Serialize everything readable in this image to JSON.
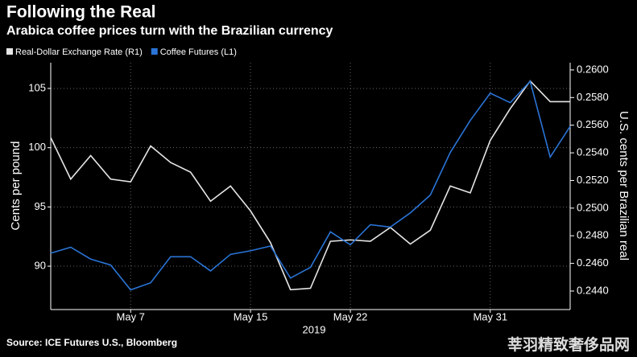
{
  "chart_data": {
    "type": "line",
    "title": "Following the Real",
    "subtitle": "Arabica coffee prices turn with the Brazilian currency",
    "ylabel": "Cents per pound",
    "y2label": "U.S. cents per Brazilian real",
    "xlabel": "2019",
    "source": "Source: ICE Futures U.S., Bloomberg",
    "watermark": "莘羽精致奢侈品网",
    "categories": [
      null,
      null,
      null,
      null,
      "May 7",
      null,
      null,
      null,
      null,
      null,
      "May 15",
      null,
      null,
      null,
      null,
      "May 22",
      null,
      null,
      null,
      null,
      null,
      null,
      "May 31",
      null,
      null,
      null,
      null
    ],
    "series": [
      {
        "name": "Real-Dollar Exchange Rate (R1)",
        "color": "#e6e6e6",
        "axis": "y2",
        "values": [
          0.2551,
          0.2521,
          0.2538,
          0.2521,
          0.2519,
          0.2545,
          0.2533,
          0.2526,
          0.2505,
          0.2516,
          0.2498,
          0.2475,
          0.2441,
          0.2442,
          0.2476,
          0.2477,
          0.2476,
          0.2486,
          0.2474,
          0.2484,
          0.2516,
          0.2511,
          0.2549,
          0.2572,
          0.2592,
          0.2577,
          0.2577
        ]
      },
      {
        "name": "Coffee Futures (L1)",
        "color": "#2a74d6",
        "values": [
          91.1,
          91.6,
          90.6,
          90.1,
          88.0,
          88.6,
          90.8,
          90.8,
          89.6,
          91.0,
          91.3,
          91.7,
          89.0,
          89.9,
          92.9,
          91.8,
          93.5,
          93.3,
          94.5,
          96.0,
          99.6,
          102.3,
          104.6,
          103.8,
          105.6,
          99.2,
          101.8
        ]
      }
    ],
    "ylim": [
      86.34,
      107.17
    ],
    "yticks": [
      90,
      95,
      100,
      105
    ],
    "y2lim": [
      0.24266,
      0.26052
    ],
    "y2ticks": [
      {
        "value": 0.244,
        "label": "0.2440"
      },
      {
        "value": 0.246,
        "label": "0.2460"
      },
      {
        "value": 0.248,
        "label": "0.2480"
      },
      {
        "value": 0.25,
        "label": "0.2500"
      },
      {
        "value": 0.252,
        "label": "0.2520"
      },
      {
        "value": 0.254,
        "label": "0.2540"
      },
      {
        "value": 0.256,
        "label": "0.2560"
      },
      {
        "value": 0.258,
        "label": "0.2580"
      },
      {
        "value": 0.26,
        "label": "0.2600"
      }
    ],
    "grid": true
  }
}
